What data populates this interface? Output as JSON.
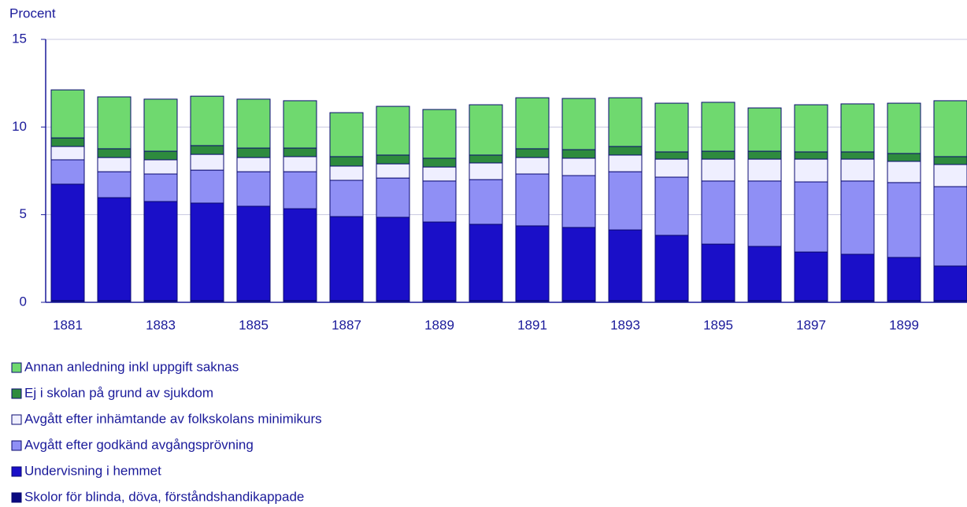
{
  "chart_data": {
    "type": "bar",
    "stacked": true,
    "y_label": "Procent",
    "categories": [
      "1881",
      null,
      "1883",
      null,
      "1885",
      null,
      "1887",
      null,
      "1889",
      null,
      "1891",
      null,
      "1893",
      null,
      "1895",
      null,
      "1897",
      null,
      "1899",
      null
    ],
    "series": [
      {
        "name": "Annan anledning inkl uppgift saknas",
        "color": "#6fd96f",
        "values": [
          2.74,
          2.96,
          2.97,
          2.82,
          2.79,
          2.7,
          2.51,
          2.78,
          2.78,
          2.87,
          2.91,
          2.92,
          2.78,
          2.78,
          2.79,
          2.47,
          2.69,
          2.74,
          2.87,
          3.19
        ]
      },
      {
        "name": "Ej i skolan på grund av sjukdom",
        "color": "#2e8b3e",
        "values": [
          0.49,
          0.5,
          0.49,
          0.5,
          0.54,
          0.49,
          0.54,
          0.5,
          0.5,
          0.45,
          0.5,
          0.49,
          0.49,
          0.41,
          0.45,
          0.45,
          0.41,
          0.41,
          0.45,
          0.45
        ]
      },
      {
        "name": "Avgått efter inhämtande av folkskolans minimikurs",
        "color": "#efefff",
        "values": [
          0.76,
          0.81,
          0.81,
          0.9,
          0.81,
          0.86,
          0.81,
          0.81,
          0.8,
          0.95,
          0.94,
          0.99,
          0.95,
          1.03,
          1.25,
          1.25,
          1.3,
          1.25,
          1.21,
          1.26
        ]
      },
      {
        "name": "Avgått efter godkänd avgångsprövning",
        "color": "#8f8ff5",
        "values": [
          1.39,
          1.48,
          1.57,
          1.88,
          1.97,
          2.11,
          2.07,
          2.24,
          2.34,
          2.55,
          2.96,
          2.96,
          3.32,
          3.32,
          3.6,
          3.73,
          4.0,
          4.18,
          4.27,
          4.53
        ]
      },
      {
        "name": "Undervisning i hemmet",
        "color": "#1a0fc8",
        "values": [
          6.64,
          5.87,
          5.65,
          5.56,
          5.38,
          5.24,
          4.79,
          4.75,
          4.48,
          4.35,
          4.26,
          4.17,
          4.03,
          3.72,
          3.22,
          3.09,
          2.77,
          2.64,
          2.46,
          1.97
        ]
      },
      {
        "name": "Skolor för blinda, döva, förståndshandikappade",
        "color": "#0a0a80",
        "values": [
          0.1,
          0.1,
          0.1,
          0.1,
          0.1,
          0.1,
          0.1,
          0.1,
          0.1,
          0.1,
          0.1,
          0.1,
          0.1,
          0.1,
          0.1,
          0.1,
          0.1,
          0.1,
          0.1,
          0.1
        ]
      }
    ],
    "ylim": [
      0,
      15
    ],
    "yticks": [
      0,
      5,
      10,
      15
    ],
    "grid": true
  }
}
